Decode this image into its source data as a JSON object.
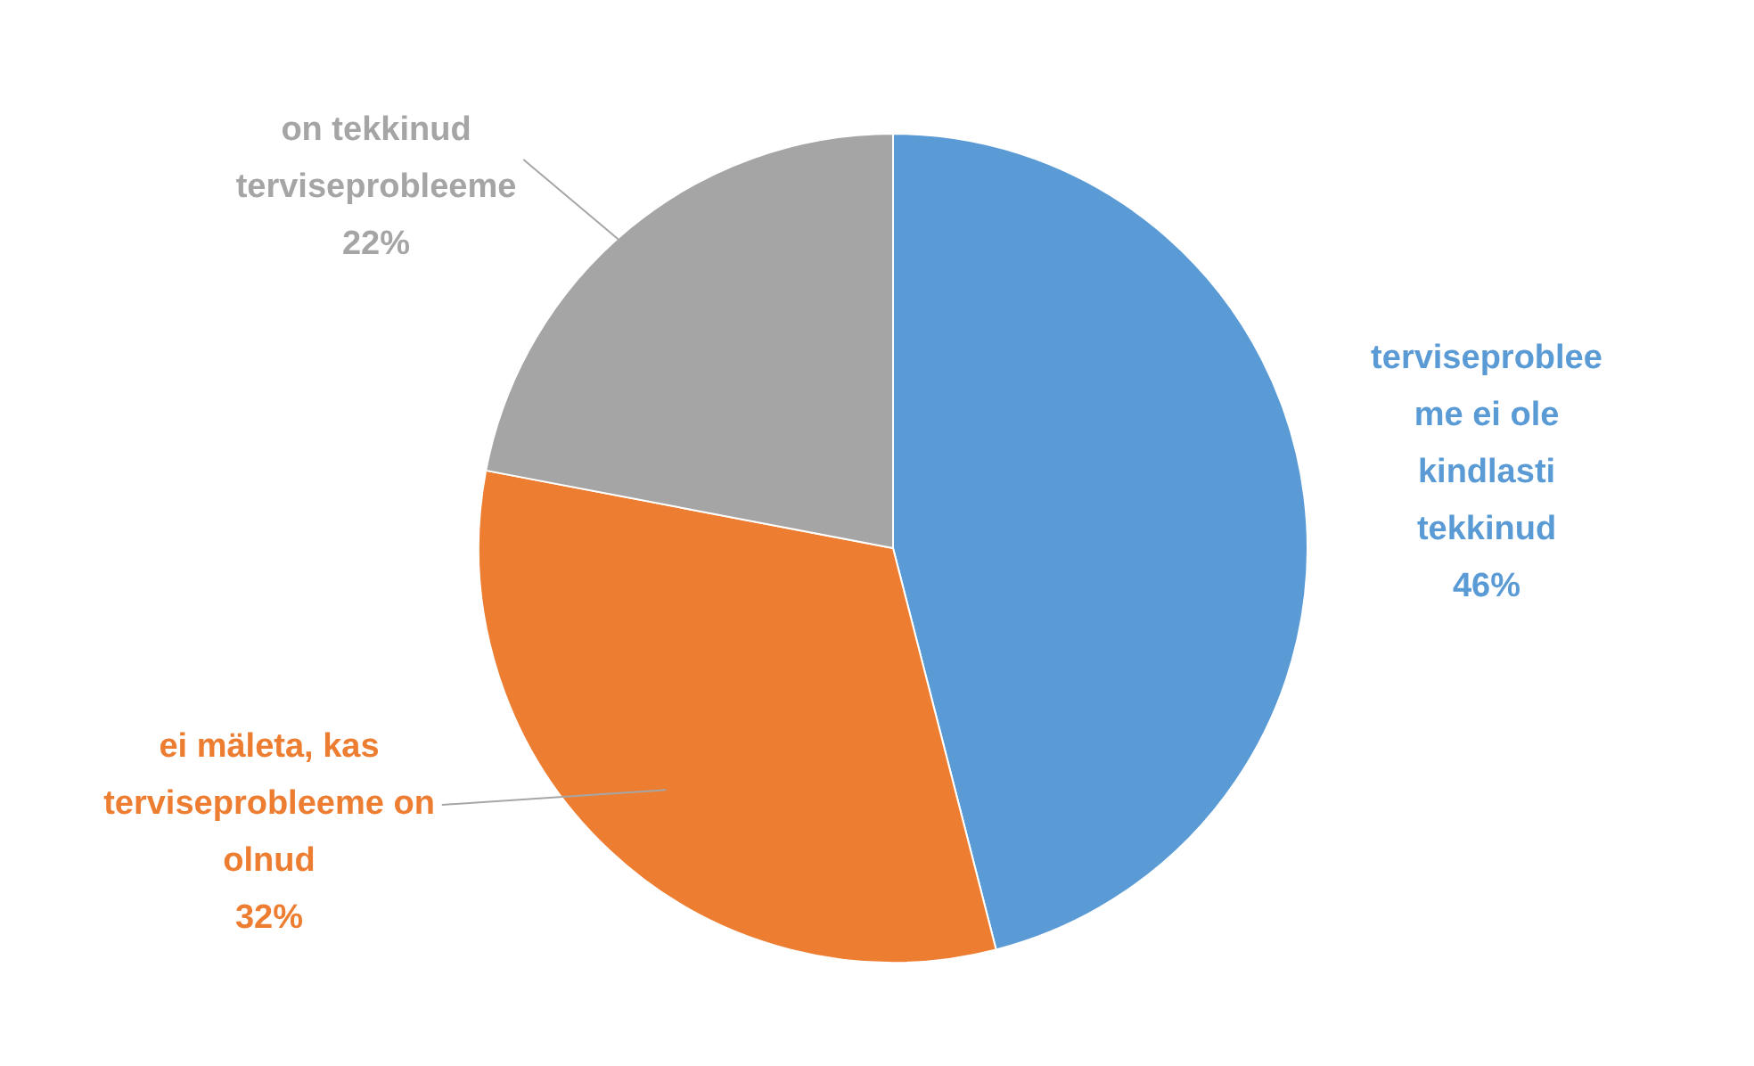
{
  "chart_data": {
    "type": "pie",
    "categories": [
      "terviseprobleeme ei ole kindlasti tekkinud",
      "ei mäleta, kas terviseprobleeme on olnud",
      "on tekkinud terviseprobleeme"
    ],
    "values": [
      46,
      32,
      22
    ],
    "colors": [
      "#5b9bd5",
      "#ed7d31",
      "#a5a5a5"
    ],
    "value_labels": [
      "46%",
      "32%",
      "22%"
    ],
    "legend": false
  }
}
